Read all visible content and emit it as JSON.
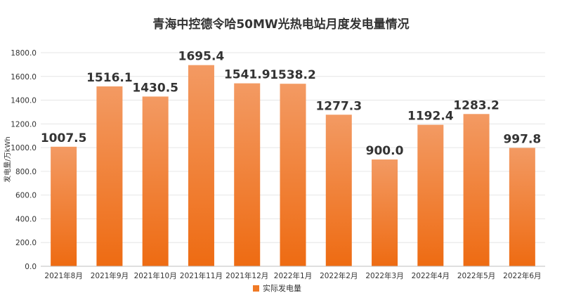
{
  "chart_data": {
    "type": "bar",
    "title": "青海中控德令哈50MW光热电站月度发电量情况",
    "ylabel": "发电量/万kWh",
    "xlabel": "",
    "ylim": [
      0,
      1800
    ],
    "yticks": [
      "0.0",
      "200.0",
      "400.0",
      "600.0",
      "800.0",
      "1000.0",
      "1200.0",
      "1400.0",
      "1600.0",
      "1800.0"
    ],
    "categories": [
      "2021年8月",
      "2021年9月",
      "2021年10月",
      "2021年11月",
      "2021年12月",
      "2022年1月",
      "2022年2月",
      "2022年3月",
      "2022年4月",
      "2022年5月",
      "2022年6月"
    ],
    "series": [
      {
        "name": "实际发电量",
        "values": [
          1007.5,
          1516.1,
          1430.5,
          1695.4,
          1541.9,
          1538.2,
          1277.3,
          900.0,
          1192.4,
          1283.2,
          997.8
        ],
        "labels": [
          "1007.5",
          "1516.1",
          "1430.5",
          "1695.4",
          "1541.9",
          "1538.2",
          "1277.3",
          "900.0",
          "1192.4",
          "1283.2",
          "997.8"
        ]
      }
    ],
    "grid": true,
    "legend": "bottom-center",
    "colors": {
      "bar_top": "#f39a63",
      "bar_bottom": "#ee6b12",
      "legend_swatch": "#f07a26"
    }
  }
}
